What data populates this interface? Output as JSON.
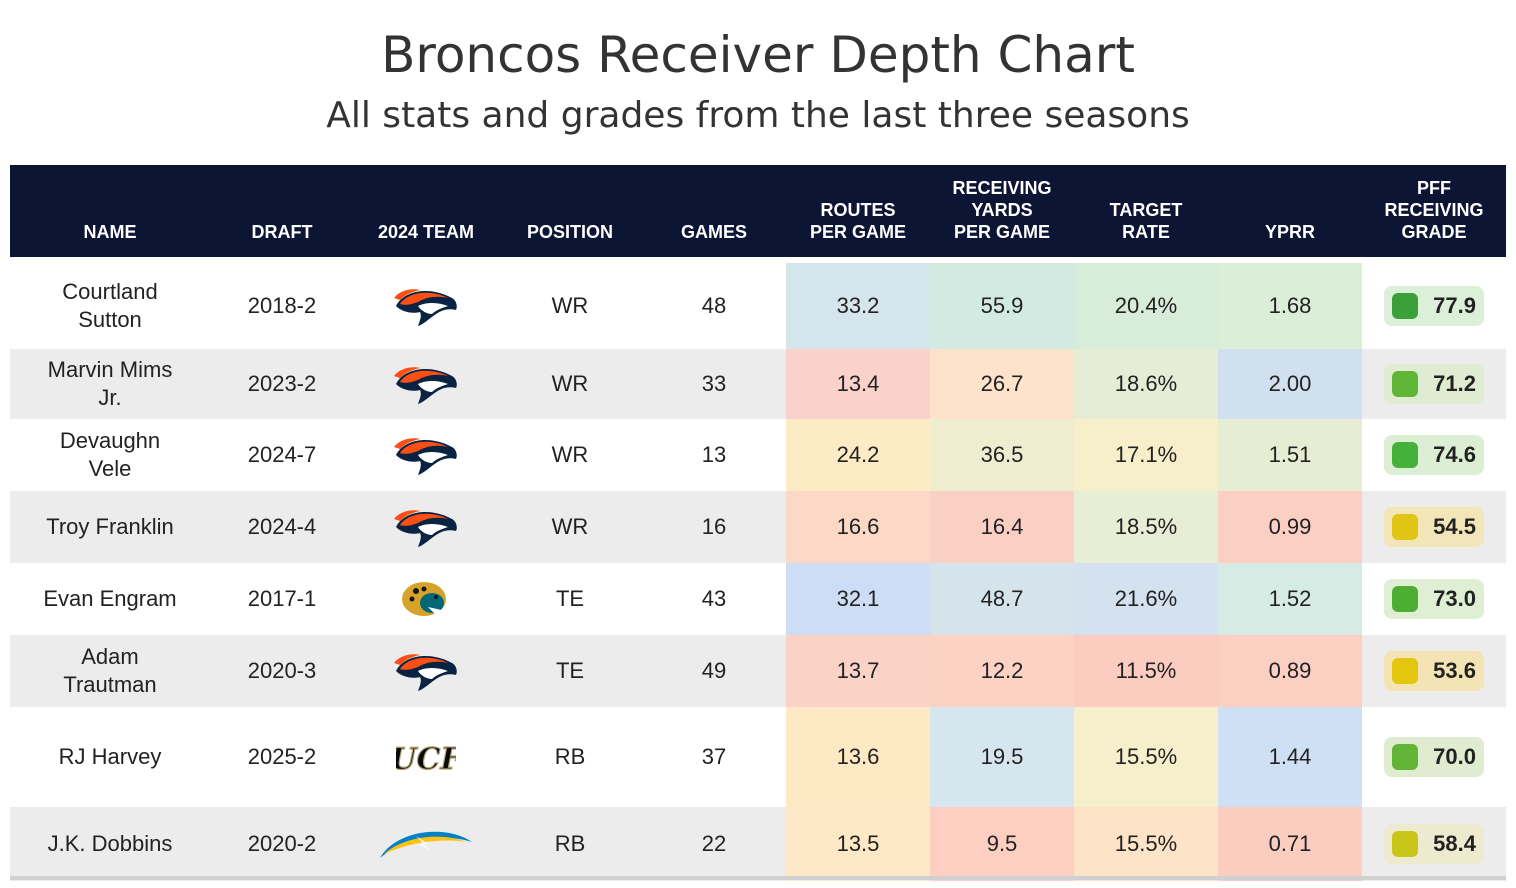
{
  "title": "Broncos Receiver Depth Chart",
  "subtitle": "All stats and grades from the last three seasons",
  "columns": {
    "name": "NAME",
    "draft": "DRAFT",
    "team": "2024 TEAM",
    "position": "POSITION",
    "games": "GAMES",
    "routes_l1": "ROUTES",
    "routes_l2": "PER GAME",
    "yards_l1": "RECEIVING",
    "yards_l2": "YARDS",
    "yards_l3": "PER GAME",
    "target_l1": "TARGET",
    "target_l2": "RATE",
    "yprr": "YPRR",
    "grade_l1": "PFF",
    "grade_l2": "RECEIVING",
    "grade_l3": "GRADE"
  },
  "colors": {
    "header_bg": "#0c1534",
    "alt_row": "#ececec"
  },
  "rows": [
    {
      "name": "Courtland Sutton",
      "draft": "2018-2",
      "team": "broncos-logo-icon",
      "position": "WR",
      "games": "48",
      "routes": "33.2",
      "yards": "55.9",
      "target": "20.4%",
      "yprr": "1.68",
      "grade": "77.9",
      "colors": {
        "routes": "#d5e5ec",
        "yards": "#d2ebe2",
        "target": "#d7ecd9",
        "yprr": "#dbeed8",
        "grade_bg": "#dcefd8",
        "grade_dot": "#3aa03a"
      }
    },
    {
      "name": "Marvin Mims Jr.",
      "draft": "2023-2",
      "team": "broncos-logo-icon",
      "position": "WR",
      "games": "33",
      "routes": "13.4",
      "yards": "26.7",
      "target": "18.6%",
      "yprr": "2.00",
      "grade": "71.2",
      "colors": {
        "routes": "#fbd2cb",
        "yards": "#fde3c9",
        "target": "#e6edd6",
        "yprr": "#d0e0ee",
        "grade_bg": "#e0ecd1",
        "grade_dot": "#5fb536"
      }
    },
    {
      "name": "Devaughn Vele",
      "draft": "2024-7",
      "team": "broncos-logo-icon",
      "position": "WR",
      "games": "13",
      "routes": "24.2",
      "yards": "36.5",
      "target": "17.1%",
      "yprr": "1.51",
      "grade": "74.6",
      "colors": {
        "routes": "#fcebc4",
        "yards": "#eeedd0",
        "target": "#f6efca",
        "yprr": "#e6edd3",
        "grade_bg": "#dcefd5",
        "grade_dot": "#45b03a"
      }
    },
    {
      "name": "Troy Franklin",
      "draft": "2024-4",
      "team": "broncos-logo-icon",
      "position": "WR",
      "games": "16",
      "routes": "16.6",
      "yards": "16.4",
      "target": "18.5%",
      "yprr": "0.99",
      "grade": "54.5",
      "colors": {
        "routes": "#fcd8c6",
        "yards": "#fbd0c4",
        "target": "#e8edd5",
        "yprr": "#fbcfc4",
        "grade_bg": "#f2e6b8",
        "grade_dot": "#e1c514"
      }
    },
    {
      "name": "Evan Engram",
      "draft": "2017-1",
      "team": "jaguars-logo-icon",
      "position": "TE",
      "games": "43",
      "routes": "32.1",
      "yards": "48.7",
      "target": "21.6%",
      "yprr": "1.52",
      "grade": "73.0",
      "colors": {
        "routes": "#cdddf5",
        "yards": "#d4e4ea",
        "target": "#d3e2ee",
        "yprr": "#d6ebe3",
        "grade_bg": "#dfefd4",
        "grade_dot": "#4caf33"
      }
    },
    {
      "name": "Adam Trautman",
      "draft": "2020-3",
      "team": "broncos-logo-icon",
      "position": "TE",
      "games": "49",
      "routes": "13.7",
      "yards": "12.2",
      "target": "11.5%",
      "yprr": "0.89",
      "grade": "53.6",
      "colors": {
        "routes": "#fbd3c6",
        "yards": "#fcd2c4",
        "target": "#fcccc0",
        "yprr": "#fccfc3",
        "grade_bg": "#f4e4b5",
        "grade_dot": "#e5c60f"
      }
    },
    {
      "name": "RJ Harvey",
      "draft": "2025-2",
      "team": "ucf-logo-icon",
      "position": "RB",
      "games": "37",
      "routes": "13.6",
      "yards": "19.5",
      "target": "15.5%",
      "yprr": "1.44",
      "grade": "70.0",
      "colors": {
        "routes": "#fdeac5",
        "yards": "#d6e6ee",
        "target": "#f6efcb",
        "yprr": "#cfdff4",
        "grade_bg": "#dfeccf",
        "grade_dot": "#62b436"
      }
    },
    {
      "name": "J.K. Dobbins",
      "draft": "2020-2",
      "team": "chargers-logo-icon",
      "position": "RB",
      "games": "22",
      "routes": "13.5",
      "yards": "9.5",
      "target": "15.5%",
      "yprr": "0.71",
      "grade": "58.4",
      "colors": {
        "routes": "#fde9c6",
        "yards": "#fccfc2",
        "target": "#fde3c8",
        "yprr": "#fbcdc1",
        "grade_bg": "#eeead0",
        "grade_dot": "#c8c619"
      }
    }
  ],
  "chart_data": {
    "type": "table",
    "title": "Broncos Receiver Depth Chart",
    "subtitle": "All stats and grades from the last three seasons",
    "headers": [
      "NAME",
      "DRAFT",
      "2024 TEAM",
      "POSITION",
      "GAMES",
      "ROUTES PER GAME",
      "RECEIVING YARDS PER GAME",
      "TARGET RATE",
      "YPRR",
      "PFF RECEIVING GRADE"
    ],
    "rows": [
      [
        "Courtland Sutton",
        "2018-2",
        "Broncos",
        "WR",
        48,
        33.2,
        55.9,
        "20.4%",
        1.68,
        77.9
      ],
      [
        "Marvin Mims Jr.",
        "2023-2",
        "Broncos",
        "WR",
        33,
        13.4,
        26.7,
        "18.6%",
        2.0,
        71.2
      ],
      [
        "Devaughn Vele",
        "2024-7",
        "Broncos",
        "WR",
        13,
        24.2,
        36.5,
        "17.1%",
        1.51,
        74.6
      ],
      [
        "Troy Franklin",
        "2024-4",
        "Broncos",
        "WR",
        16,
        16.6,
        16.4,
        "18.5%",
        0.99,
        54.5
      ],
      [
        "Evan Engram",
        "2017-1",
        "Jaguars",
        "TE",
        43,
        32.1,
        48.7,
        "21.6%",
        1.52,
        73.0
      ],
      [
        "Adam Trautman",
        "2020-3",
        "Broncos",
        "TE",
        49,
        13.7,
        12.2,
        "11.5%",
        0.89,
        53.6
      ],
      [
        "RJ Harvey",
        "2025-2",
        "UCF",
        "RB",
        37,
        13.6,
        19.5,
        "15.5%",
        1.44,
        70.0
      ],
      [
        "J.K. Dobbins",
        "2020-2",
        "Chargers",
        "RB",
        22,
        13.5,
        9.5,
        "15.5%",
        0.71,
        58.4
      ]
    ]
  }
}
